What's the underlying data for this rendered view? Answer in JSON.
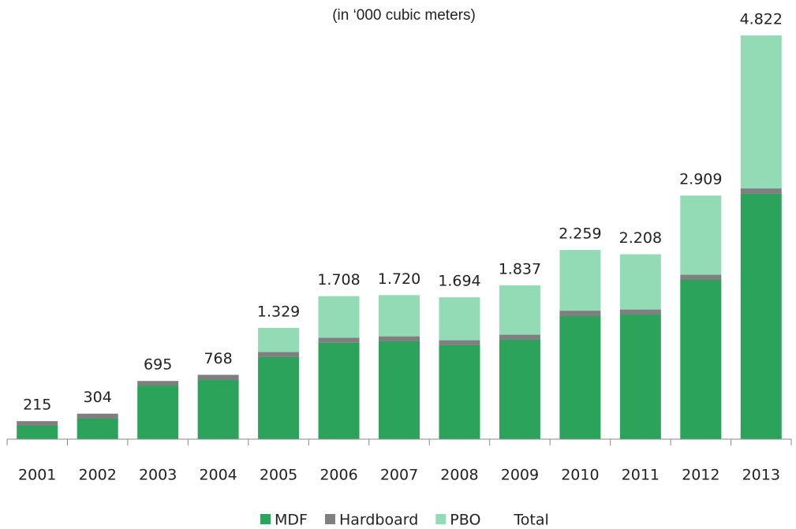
{
  "chart_data": {
    "type": "stacked_bar",
    "title": "(in ‘000 cubic meters)",
    "categories": [
      "2001",
      "2002",
      "2003",
      "2004",
      "2005",
      "2006",
      "2007",
      "2008",
      "2009",
      "2010",
      "2011",
      "2012",
      "2013"
    ],
    "series": [
      {
        "name": "MDF",
        "color": "#2ba35a",
        "values": [
          160,
          245,
          640,
          706,
          980,
          1150,
          1168,
          1121,
          1187,
          1469,
          1488,
          1902,
          2929
        ]
      },
      {
        "name": "Hardboard",
        "color": "#7f7f7f",
        "values": [
          55,
          59,
          55,
          62,
          60,
          60,
          60,
          60,
          60,
          65,
          60,
          62,
          65
        ]
      },
      {
        "name": "PBO",
        "color": "#93dbb4",
        "values": [
          0,
          0,
          0,
          0,
          289,
          498,
          492,
          513,
          590,
          725,
          660,
          945,
          1828
        ]
      },
      {
        "name": "Total",
        "values": [
          215,
          304,
          695,
          768,
          1329,
          1708,
          1720,
          1694,
          1837,
          2259,
          2208,
          2909,
          4822
        ],
        "value_labels": [
          "215",
          "304",
          "695",
          "768",
          "1.329",
          "1.708",
          "1.720",
          "1.694",
          "1.837",
          "2.259",
          "2.208",
          "2.909",
          "4.822"
        ]
      }
    ],
    "ylim": [
      0,
      5000
    ]
  }
}
